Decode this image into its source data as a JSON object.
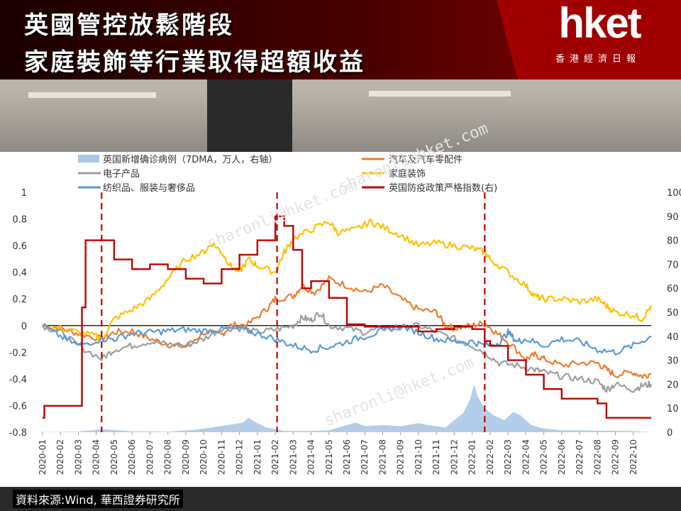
{
  "header": {
    "title_line1": "英國管控放鬆階段",
    "title_line2": "家庭裝飾等行業取得超額收益",
    "brand_logo": "hket",
    "brand_sub": "香港經濟日報",
    "banner_color": "#8b0000"
  },
  "footer": {
    "source": "資料來源:Wind, 華西證券研究所"
  },
  "watermark": "sharonli@hket.com",
  "chart_data": {
    "type": "line",
    "x_tick_labels": [
      "2020-01",
      "2020-02",
      "2020-03",
      "2020-04",
      "2020-05",
      "2020-06",
      "2020-07",
      "2020-08",
      "2020-09",
      "2020-10",
      "2020-11",
      "2020-12",
      "2021-01",
      "2021-02",
      "2021-03",
      "2021-04",
      "2021-05",
      "2021-06",
      "2021-07",
      "2021-08",
      "2021-09",
      "2021-10",
      "2021-11",
      "2021-12",
      "2022-01",
      "2022-02",
      "2022-03",
      "2022-04",
      "2022-05",
      "2022-06",
      "2022-07",
      "2022-08",
      "2022-09",
      "2022-10"
    ],
    "y_left": {
      "ticks": [
        "1",
        "0.8",
        "0.6",
        "0.4",
        "0.2",
        "0",
        "-0.2",
        "-0.4",
        "-0.6",
        "-0.8"
      ],
      "range": [
        -0.8,
        1
      ]
    },
    "y_right": {
      "ticks": [
        "100",
        "90",
        "80",
        "70",
        "60",
        "50",
        "40",
        "30",
        "20",
        "10",
        "0"
      ],
      "range": [
        0,
        100
      ]
    },
    "vlines_month_index": [
      3.3,
      13.1,
      24.7
    ],
    "series": [
      {
        "name": "英国新增确诊病例（7DMA，万人，右轴）",
        "axis": "right",
        "kind": "area",
        "color": "#a8c8e8",
        "points": [
          [
            0,
            0.1
          ],
          [
            2,
            0.2
          ],
          [
            3.3,
            1.2
          ],
          [
            5,
            0.4
          ],
          [
            7,
            0.2
          ],
          [
            8.5,
            1.0
          ],
          [
            9.5,
            2.0
          ],
          [
            10.5,
            3.2
          ],
          [
            11.2,
            4.0
          ],
          [
            11.5,
            6.0
          ],
          [
            11.8,
            4.5
          ],
          [
            12.5,
            2.0
          ],
          [
            13.5,
            0.5
          ],
          [
            15,
            0.5
          ],
          [
            16,
            0.8
          ],
          [
            17,
            3.0
          ],
          [
            17.5,
            4.0
          ],
          [
            18,
            2.5
          ],
          [
            19,
            3.0
          ],
          [
            20,
            2.5
          ],
          [
            21,
            3.8
          ],
          [
            21.5,
            3.0
          ],
          [
            22.5,
            2.0
          ],
          [
            23.5,
            8.0
          ],
          [
            23.9,
            14.0
          ],
          [
            24.1,
            20.0
          ],
          [
            24.3,
            15.0
          ],
          [
            24.7,
            10.0
          ],
          [
            25.2,
            7.0
          ],
          [
            25.8,
            5.0
          ],
          [
            26.3,
            8.5
          ],
          [
            26.7,
            7.0
          ],
          [
            27.3,
            3.0
          ],
          [
            28,
            1.5
          ],
          [
            29,
            0.8
          ],
          [
            30,
            0.8
          ],
          [
            31,
            0.6
          ],
          [
            32,
            0.6
          ],
          [
            33,
            0.4
          ],
          [
            34,
            0.1
          ]
        ]
      },
      {
        "name": "汽车及汽车零配件",
        "axis": "left",
        "kind": "line",
        "color": "#ed7d31",
        "points": [
          [
            0,
            0
          ],
          [
            1,
            -0.02
          ],
          [
            2,
            -0.06
          ],
          [
            3.3,
            -0.1
          ],
          [
            4,
            -0.05
          ],
          [
            5,
            -0.04
          ],
          [
            6,
            -0.1
          ],
          [
            7,
            -0.14
          ],
          [
            8,
            -0.16
          ],
          [
            9,
            -0.05
          ],
          [
            10,
            -0.07
          ],
          [
            10.5,
            0.0
          ],
          [
            11.5,
            0.01
          ],
          [
            12.5,
            0.12
          ],
          [
            13,
            0.2
          ],
          [
            14,
            0.22
          ],
          [
            14.5,
            0.3
          ],
          [
            15.2,
            0.25
          ],
          [
            16,
            0.35
          ],
          [
            17,
            0.3
          ],
          [
            18,
            0.25
          ],
          [
            19,
            0.3
          ],
          [
            20,
            0.2
          ],
          [
            21,
            0.12
          ],
          [
            22,
            0.1
          ],
          [
            22.5,
            0.0
          ],
          [
            23,
            -0.02
          ],
          [
            24,
            0.0
          ],
          [
            24.7,
            0.02
          ],
          [
            25.3,
            -0.05
          ],
          [
            26,
            -0.12
          ],
          [
            27,
            -0.25
          ],
          [
            27.5,
            -0.22
          ],
          [
            28,
            -0.25
          ],
          [
            29,
            -0.3
          ],
          [
            30,
            -0.28
          ],
          [
            31,
            -0.28
          ],
          [
            31.5,
            -0.33
          ],
          [
            32,
            -0.37
          ],
          [
            33,
            -0.35
          ],
          [
            33.5,
            -0.38
          ],
          [
            34,
            -0.36
          ]
        ]
      },
      {
        "name": "电子产品",
        "axis": "left",
        "kind": "line",
        "color": "#9e9e9e",
        "points": [
          [
            0,
            0
          ],
          [
            1,
            -0.05
          ],
          [
            2,
            -0.15
          ],
          [
            3.3,
            -0.25
          ],
          [
            4,
            -0.18
          ],
          [
            5,
            -0.15
          ],
          [
            6,
            -0.12
          ],
          [
            7,
            -0.14
          ],
          [
            8,
            -0.15
          ],
          [
            9,
            -0.1
          ],
          [
            10,
            -0.02
          ],
          [
            11,
            -0.02
          ],
          [
            12,
            -0.05
          ],
          [
            13,
            -0.03
          ],
          [
            14,
            0.0
          ],
          [
            14.5,
            0.06
          ],
          [
            15,
            0.04
          ],
          [
            15.5,
            0.1
          ],
          [
            16,
            0.0
          ],
          [
            17,
            -0.02
          ],
          [
            18,
            -0.05
          ],
          [
            19,
            -0.02
          ],
          [
            20,
            -0.02
          ],
          [
            21,
            0.0
          ],
          [
            22,
            -0.05
          ],
          [
            23,
            -0.1
          ],
          [
            24,
            -0.15
          ],
          [
            24.7,
            -0.2
          ],
          [
            25.5,
            -0.28
          ],
          [
            26.5,
            -0.3
          ],
          [
            27.5,
            -0.33
          ],
          [
            28,
            -0.35
          ],
          [
            29,
            -0.38
          ],
          [
            30,
            -0.4
          ],
          [
            31,
            -0.42
          ],
          [
            31.5,
            -0.48
          ],
          [
            32,
            -0.44
          ],
          [
            33,
            -0.48
          ],
          [
            33.5,
            -0.45
          ],
          [
            34,
            -0.44
          ]
        ]
      },
      {
        "name": "家庭装饰",
        "axis": "left",
        "kind": "line",
        "color": "#ffc000",
        "points": [
          [
            0,
            0
          ],
          [
            1,
            -0.02
          ],
          [
            2,
            -0.05
          ],
          [
            3,
            -0.08
          ],
          [
            3.3,
            -0.1
          ],
          [
            4,
            0.05
          ],
          [
            5,
            0.12
          ],
          [
            6,
            0.2
          ],
          [
            7,
            0.35
          ],
          [
            8,
            0.5
          ],
          [
            9,
            0.55
          ],
          [
            9.5,
            0.62
          ],
          [
            10,
            0.55
          ],
          [
            10.5,
            0.45
          ],
          [
            11,
            0.4
          ],
          [
            11.5,
            0.5
          ],
          [
            12,
            0.45
          ],
          [
            13,
            0.4
          ],
          [
            13.5,
            0.55
          ],
          [
            14,
            0.65
          ],
          [
            15,
            0.72
          ],
          [
            16,
            0.78
          ],
          [
            16.5,
            0.7
          ],
          [
            17.5,
            0.72
          ],
          [
            18.3,
            0.78
          ],
          [
            19,
            0.74
          ],
          [
            20,
            0.68
          ],
          [
            21,
            0.6
          ],
          [
            22,
            0.62
          ],
          [
            23,
            0.6
          ],
          [
            24,
            0.58
          ],
          [
            24.7,
            0.55
          ],
          [
            25,
            0.5
          ],
          [
            26,
            0.4
          ],
          [
            27,
            0.3
          ],
          [
            27.5,
            0.22
          ],
          [
            28,
            0.2
          ],
          [
            29,
            0.2
          ],
          [
            30,
            0.18
          ],
          [
            31,
            0.2
          ],
          [
            31.5,
            0.15
          ],
          [
            32,
            0.1
          ],
          [
            33,
            0.08
          ],
          [
            33.5,
            0.05
          ],
          [
            34,
            0.15
          ]
        ]
      },
      {
        "name": "纺织品、服装与奢侈品",
        "axis": "left",
        "kind": "line",
        "color": "#5b9bd5",
        "points": [
          [
            0,
            0
          ],
          [
            1,
            -0.08
          ],
          [
            2,
            -0.15
          ],
          [
            3.3,
            -0.1
          ],
          [
            4,
            -0.1
          ],
          [
            5,
            -0.06
          ],
          [
            6,
            -0.05
          ],
          [
            7,
            -0.04
          ],
          [
            8,
            -0.03
          ],
          [
            9,
            -0.04
          ],
          [
            10,
            -0.03
          ],
          [
            11,
            -0.02
          ],
          [
            12,
            -0.06
          ],
          [
            13,
            -0.1
          ],
          [
            14,
            -0.15
          ],
          [
            15,
            -0.18
          ],
          [
            16,
            -0.16
          ],
          [
            17,
            -0.12
          ],
          [
            18,
            -0.08
          ],
          [
            19,
            -0.04
          ],
          [
            20,
            0.0
          ],
          [
            21,
            -0.05
          ],
          [
            22,
            -0.1
          ],
          [
            23,
            -0.12
          ],
          [
            24,
            -0.12
          ],
          [
            24.7,
            -0.15
          ],
          [
            25.5,
            -0.13
          ],
          [
            26,
            -0.05
          ],
          [
            26.5,
            -0.12
          ],
          [
            27,
            -0.1
          ],
          [
            28,
            -0.15
          ],
          [
            29,
            -0.1
          ],
          [
            30,
            -0.12
          ],
          [
            31,
            -0.18
          ],
          [
            32,
            -0.2
          ],
          [
            33,
            -0.15
          ],
          [
            34,
            -0.08
          ]
        ]
      },
      {
        "name": "英国防疫政策严格指数(右)",
        "axis": "right",
        "kind": "step",
        "color": "#c00000",
        "points": [
          [
            0,
            6
          ],
          [
            0.1,
            11
          ],
          [
            1.8,
            11
          ],
          [
            2.2,
            52
          ],
          [
            2.4,
            80
          ],
          [
            3.8,
            80
          ],
          [
            4,
            72
          ],
          [
            5,
            68
          ],
          [
            6,
            70
          ],
          [
            7,
            68
          ],
          [
            8,
            64
          ],
          [
            9,
            62
          ],
          [
            10,
            68
          ],
          [
            11,
            74
          ],
          [
            12,
            80
          ],
          [
            13,
            90
          ],
          [
            13.5,
            86
          ],
          [
            14,
            76
          ],
          [
            14.5,
            60
          ],
          [
            15,
            63
          ],
          [
            16,
            56
          ],
          [
            17,
            45
          ],
          [
            18,
            44
          ],
          [
            19,
            44
          ],
          [
            20,
            44
          ],
          [
            21,
            42
          ],
          [
            22,
            43
          ],
          [
            23,
            44
          ],
          [
            24,
            43
          ],
          [
            24.7,
            38
          ],
          [
            25,
            36
          ],
          [
            26,
            30
          ],
          [
            27,
            24
          ],
          [
            28,
            18
          ],
          [
            29,
            14
          ],
          [
            30,
            14
          ],
          [
            31,
            12
          ],
          [
            31.5,
            6
          ],
          [
            32,
            6
          ],
          [
            33,
            6
          ],
          [
            34,
            6
          ]
        ]
      }
    ]
  }
}
